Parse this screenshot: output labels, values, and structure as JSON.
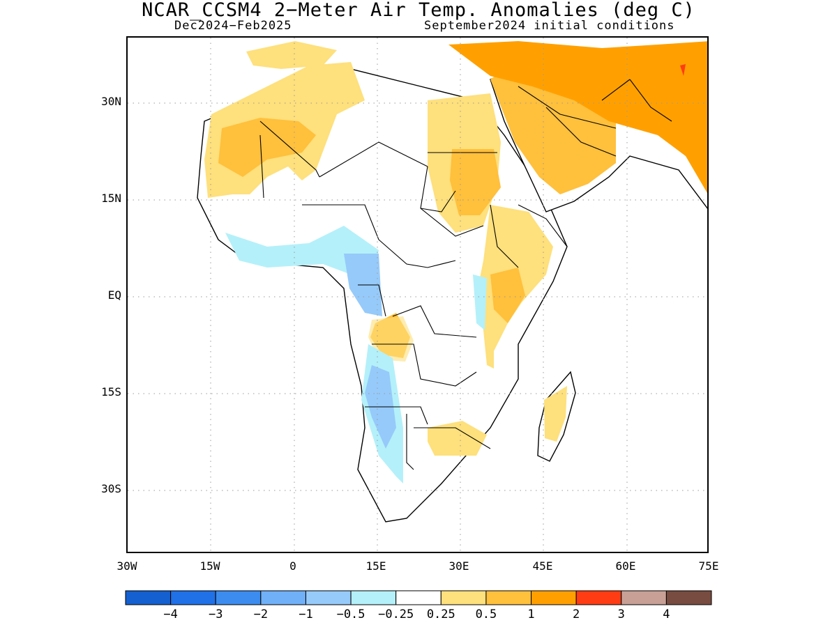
{
  "title": "NCAR_CCSM4 2−Meter Air Temp. Anomalies (deg C)",
  "subtitle_left": "Dec2024−Feb2025",
  "subtitle_right": "September2024 initial conditions",
  "lat_labels": [
    "30N",
    "15N",
    "EQ",
    "15S",
    "30S"
  ],
  "lon_labels": [
    "30W",
    "15W",
    "0",
    "15E",
    "30E",
    "45E",
    "60E",
    "75E"
  ],
  "map": {
    "type": "geographic anomaly map",
    "lon_range": [
      -30,
      75
    ],
    "lat_range": [
      -40,
      40
    ],
    "grid": true
  },
  "colorbar": {
    "colors": [
      "#1560d0",
      "#2070e8",
      "#3c8cf0",
      "#70b0f8",
      "#96cafa",
      "#b4f0fa",
      "#ffffff",
      "#fee07c",
      "#ffc03c",
      "#ffa000",
      "#ff3c14",
      "#c8a096",
      "#784c40"
    ],
    "labels": [
      "−4",
      "−3",
      "−2",
      "−1",
      "−0.5",
      "−0.25",
      "0.25",
      "0.5",
      "1",
      "2",
      "3",
      "4"
    ]
  }
}
